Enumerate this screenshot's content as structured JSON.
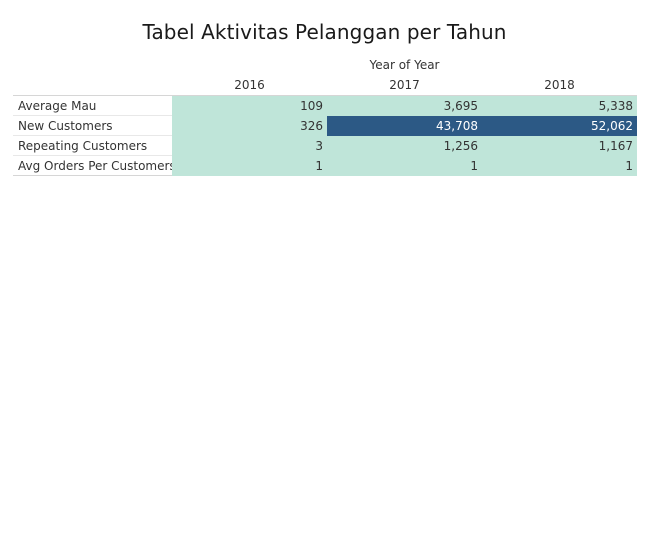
{
  "chart_data": {
    "type": "table",
    "title": "Tabel Aktivitas Pelanggan per Tahun",
    "column_group_label": "Year of Year",
    "columns": [
      "2016",
      "2017",
      "2018"
    ],
    "rows": [
      {
        "label": "Average Mau",
        "values": [
          "109",
          "3,695",
          "5,338"
        ],
        "numeric": [
          109,
          3695,
          5338
        ]
      },
      {
        "label": "New Customers",
        "values": [
          "326",
          "43,708",
          "52,062"
        ],
        "numeric": [
          326,
          43708,
          52062
        ]
      },
      {
        "label": "Repeating Customers",
        "values": [
          "3",
          "1,256",
          "1,167"
        ],
        "numeric": [
          3,
          1256,
          1167
        ]
      },
      {
        "label": "Avg Orders Per Customers",
        "values": [
          "1",
          "1",
          "1"
        ],
        "numeric": [
          1,
          1,
          1
        ]
      }
    ],
    "color_scale": {
      "low": "#bfe5d9",
      "high": "#2c5985",
      "high_threshold": 10000
    }
  }
}
